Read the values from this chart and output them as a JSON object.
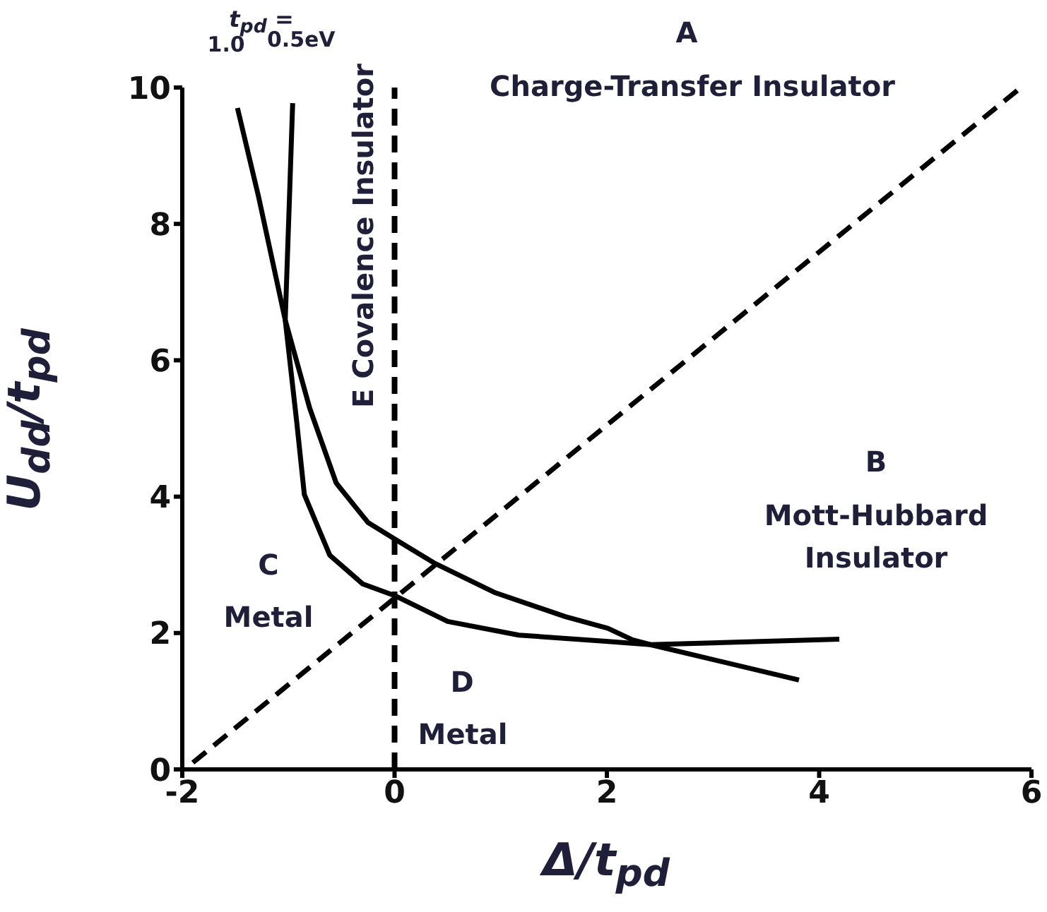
{
  "chart_data": {
    "type": "line",
    "xlabel": "Δ/t$_{pd}$",
    "ylabel": "U$_{dd}$/t$_{pd}$",
    "legend_title": "t$_{pd}$ =",
    "xlim": [
      -2,
      6
    ],
    "xticks": [
      -2,
      0,
      2,
      4,
      6
    ],
    "ylim": [
      0,
      10
    ],
    "yticks": [
      0,
      2,
      4,
      6,
      8,
      10
    ],
    "grid": false,
    "legend": false,
    "marker": "none",
    "series": [
      {
        "name": "1.0",
        "color": "#000000",
        "line_style": "solid",
        "x": [
          -1.48,
          -1.28,
          -1.03,
          -0.8,
          -0.55,
          -0.25,
          0,
          0.37,
          0.95,
          1.61,
          2.01,
          2.24,
          2.41,
          3.81
        ],
        "values": [
          9.7,
          8.39,
          6.59,
          5.3,
          4.2,
          3.62,
          3.38,
          3.03,
          2.59,
          2.24,
          2.07,
          1.9,
          1.83,
          1.31
        ]
      },
      {
        "name": "0.5eV",
        "color": "#000000",
        "line_style": "solid",
        "x": [
          -0.96,
          -0.99,
          -1.03,
          -0.92,
          -0.85,
          -0.61,
          -0.3,
          0,
          0.5,
          1.17,
          1.99,
          2.41,
          4.19
        ],
        "values": [
          9.77,
          8.39,
          6.59,
          5.07,
          4.03,
          3.14,
          2.72,
          2.55,
          2.17,
          1.97,
          1.88,
          1.83,
          1.91
        ]
      },
      {
        "color": "#000000",
        "line_style": "dashed",
        "x": [
          -1.9,
          5.9
        ],
        "values": [
          0.1,
          10
        ]
      }
    ],
    "ref_lines": [
      {
        "axis": "x",
        "value": 0,
        "color": "#000000",
        "line_style": "dashed"
      }
    ],
    "annotations": [
      "A",
      "Charge-Transfer Insulator",
      "E Covalence Insulator",
      "B",
      "Mott-Hubbard Insulator",
      "C",
      "Metal",
      "D",
      "Metal"
    ]
  }
}
